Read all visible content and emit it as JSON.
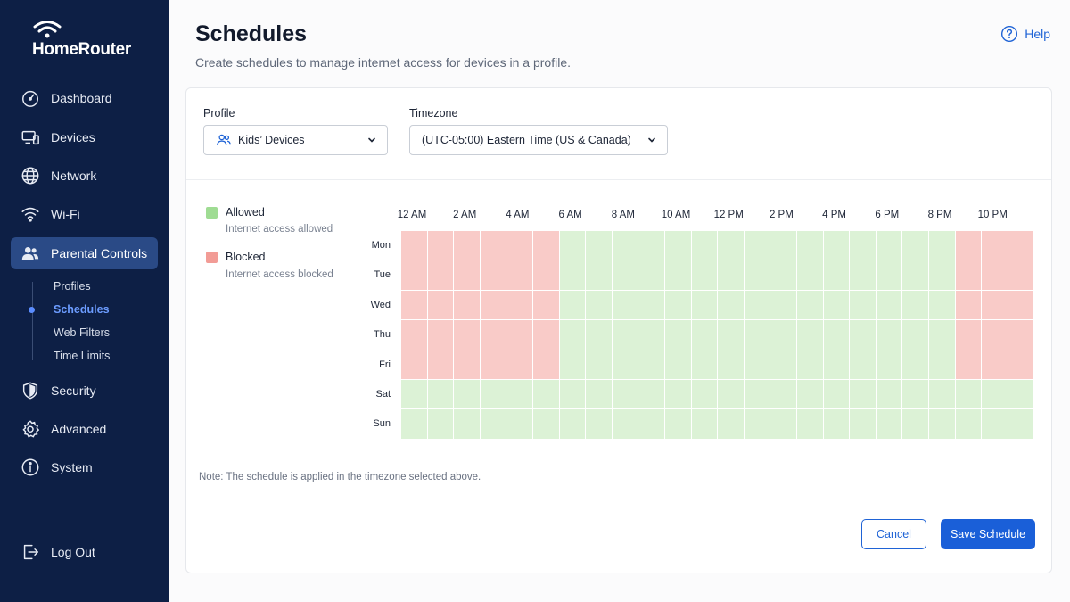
{
  "brand": {
    "name": "HomeRouter"
  },
  "sidebar": {
    "items": [
      {
        "label": "Dashboard",
        "icon": "speedometer-icon"
      },
      {
        "label": "Devices",
        "icon": "devices-icon"
      },
      {
        "label": "Network",
        "icon": "globe-icon"
      },
      {
        "label": "Wi-Fi",
        "icon": "wifi-icon"
      },
      {
        "label": "Parental Controls",
        "icon": "users-icon",
        "active": true
      },
      {
        "label": "Security",
        "icon": "shield-icon"
      },
      {
        "label": "Advanced",
        "icon": "gear-icon"
      },
      {
        "label": "System",
        "icon": "info-icon"
      }
    ],
    "subitems": [
      {
        "label": "Profiles"
      },
      {
        "label": "Schedules",
        "active": true
      },
      {
        "label": "Web Filters"
      },
      {
        "label": "Time Limits"
      }
    ],
    "logout": "Log Out"
  },
  "header": {
    "title": "Schedules",
    "subtitle": "Create schedules to manage internet access for devices in a profile.",
    "help": "Help"
  },
  "filters": {
    "profile_label": "Profile",
    "profile_value": "Kids’ Devices",
    "timezone_label": "Timezone",
    "timezone_value": "(UTC-05:00) Eastern Time (US & Canada)"
  },
  "legend": {
    "allowed": {
      "title": "Allowed",
      "desc": "Internet access allowed",
      "color": "#9fdc93"
    },
    "blocked": {
      "title": "Blocked",
      "desc": "Internet access blocked",
      "color": "#f29c96"
    }
  },
  "schedule": {
    "hour_labels": [
      "12 AM",
      "2 AM",
      "4 AM",
      "6 AM",
      "8 AM",
      "10 AM",
      "12 PM",
      "2 PM",
      "4 PM",
      "6 PM",
      "8 PM",
      "10 PM"
    ],
    "days": [
      {
        "label": "Mon",
        "blocked_hours": [
          0,
          1,
          2,
          3,
          4,
          5,
          21,
          22,
          23
        ]
      },
      {
        "label": "Tue",
        "blocked_hours": [
          0,
          1,
          2,
          3,
          4,
          5,
          21,
          22,
          23
        ]
      },
      {
        "label": "Wed",
        "blocked_hours": [
          0,
          1,
          2,
          3,
          4,
          5,
          21,
          22,
          23
        ]
      },
      {
        "label": "Thu",
        "blocked_hours": [
          0,
          1,
          2,
          3,
          4,
          5,
          21,
          22,
          23
        ]
      },
      {
        "label": "Fri",
        "blocked_hours": [
          0,
          1,
          2,
          3,
          4,
          5,
          21,
          22,
          23
        ]
      },
      {
        "label": "Sat",
        "blocked_hours": []
      },
      {
        "label": "Sun",
        "blocked_hours": []
      }
    ],
    "allowed_color": "#dcf2d6",
    "blocked_color": "#f9cbc8"
  },
  "note": "Note: The schedule is applied in the timezone selected above.",
  "actions": {
    "cancel": "Cancel",
    "save": "Save Schedule"
  }
}
